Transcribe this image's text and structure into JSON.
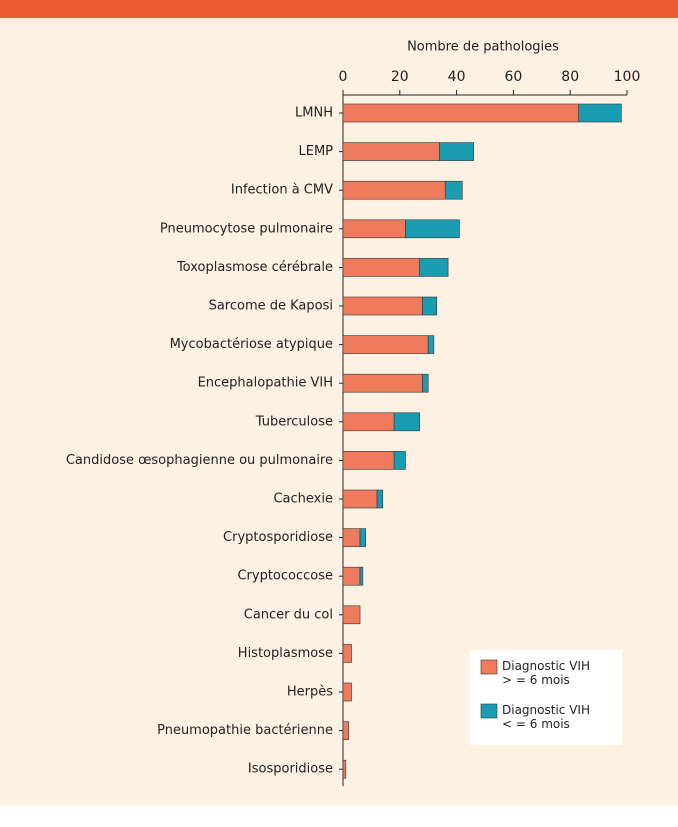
{
  "chart_data": {
    "type": "stacked-barh",
    "xlabel": "Nombre de pathologies",
    "categories": [
      "LMNH",
      "LEMP",
      "Infection à CMV",
      "Pneumocytose pulmonaire",
      "Toxoplasmose cérébrale",
      "Sarcome de Kaposi",
      "Mycobactériose atypique",
      "Encephalopathie VIH",
      "Tuberculose",
      "Candidose œsophagienne ou pulmonaire",
      "Cachexie",
      "Cryptosporidiose",
      "Cryptococcose",
      "Cancer du col",
      "Histoplasmose",
      "Herpès",
      "Pneumopathie bactérienne",
      "Isosporidiose"
    ],
    "series": [
      {
        "name": "Diagnostic VIH > = 6 mois",
        "color": "#ef7b5c",
        "values": [
          83,
          34,
          36,
          22,
          27,
          28,
          30,
          28,
          18,
          18,
          12,
          6,
          6,
          6,
          3,
          3,
          2,
          1
        ]
      },
      {
        "name": "Diagnostic VIH < = 6 mois",
        "color": "#1a9cb3",
        "values": [
          15,
          12,
          6,
          19,
          10,
          5,
          2,
          2,
          9,
          4,
          2,
          2,
          1,
          0,
          0,
          0,
          0,
          0
        ]
      }
    ],
    "xlim": [
      0,
      100
    ],
    "xticks": [
      0,
      20,
      40,
      60,
      80,
      100
    ],
    "legend": "lower right"
  }
}
